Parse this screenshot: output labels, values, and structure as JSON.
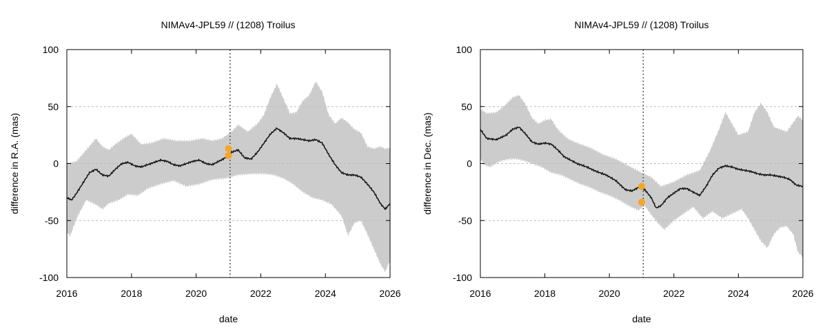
{
  "colors": {
    "band": "#cccccc",
    "line": "#1a1a1a",
    "points": "#f5a623",
    "grid": "#bbbbbb",
    "epoch_line": "#555555"
  },
  "chart_data": [
    {
      "type": "area",
      "title": "NIMAv4-JPL59 // (1208) Troilus",
      "xlabel": "date",
      "ylabel": "difference in R.A. (mas)",
      "xlim": [
        2016,
        2026
      ],
      "ylim": [
        -100,
        100
      ],
      "xticks": [
        "2016",
        "2018",
        "2020",
        "2022",
        "2024",
        "2026"
      ],
      "yticks": [
        "-100",
        "-50",
        "0",
        "50",
        "100"
      ],
      "grid": "horizontal dashed",
      "epoch_marker_x": 2021.05,
      "series": [
        {
          "role": "mean",
          "x": [
            2016.0,
            2016.15,
            2016.3,
            2016.5,
            2016.7,
            2016.9,
            2017.1,
            2017.3,
            2017.5,
            2017.7,
            2017.9,
            2018.1,
            2018.3,
            2018.5,
            2018.7,
            2018.9,
            2019.1,
            2019.3,
            2019.5,
            2019.7,
            2019.9,
            2020.1,
            2020.3,
            2020.5,
            2020.7,
            2020.9,
            2021.1,
            2021.3,
            2021.5,
            2021.7,
            2021.9,
            2022.1,
            2022.3,
            2022.5,
            2022.7,
            2022.9,
            2023.1,
            2023.3,
            2023.5,
            2023.7,
            2023.9,
            2024.1,
            2024.3,
            2024.5,
            2024.7,
            2024.9,
            2025.1,
            2025.3,
            2025.5,
            2025.7,
            2025.85,
            2026.0
          ],
          "y": [
            -30,
            -32,
            -26,
            -17,
            -8,
            -5,
            -10,
            -11,
            -5,
            0,
            1,
            -2,
            -3,
            -1,
            1,
            3,
            2,
            -1,
            -2,
            0,
            2,
            3,
            0,
            -1,
            2,
            5,
            10,
            12,
            5,
            4,
            10,
            18,
            26,
            31,
            27,
            22,
            22,
            21,
            20,
            21,
            18,
            8,
            -1,
            -8,
            -10,
            -10,
            -12,
            -18,
            -25,
            -35,
            -40,
            -35
          ]
        },
        {
          "role": "upper",
          "x": [
            2016.0,
            2016.3,
            2016.6,
            2016.9,
            2017.1,
            2017.3,
            2017.5,
            2017.8,
            2018.0,
            2018.3,
            2018.6,
            2019.0,
            2019.4,
            2019.8,
            2020.2,
            2020.5,
            2020.8,
            2021.1,
            2021.3,
            2021.6,
            2021.9,
            2022.1,
            2022.3,
            2022.5,
            2022.7,
            2022.9,
            2023.1,
            2023.3,
            2023.5,
            2023.7,
            2023.9,
            2024.1,
            2024.3,
            2024.5,
            2024.7,
            2024.9,
            2025.1,
            2025.3,
            2025.5,
            2025.7,
            2025.85,
            2026.0
          ],
          "y": [
            0,
            2,
            12,
            22,
            15,
            12,
            17,
            23,
            26,
            17,
            18,
            22,
            20,
            20,
            22,
            20,
            22,
            28,
            34,
            28,
            35,
            43,
            58,
            70,
            57,
            44,
            45,
            55,
            60,
            72,
            63,
            43,
            35,
            40,
            36,
            30,
            27,
            15,
            13,
            15,
            13,
            14
          ]
        },
        {
          "role": "lower",
          "x": [
            2016.0,
            2016.1,
            2016.3,
            2016.6,
            2016.9,
            2017.1,
            2017.3,
            2017.6,
            2017.9,
            2018.2,
            2018.5,
            2018.9,
            2019.3,
            2019.7,
            2020.1,
            2020.5,
            2020.9,
            2021.3,
            2021.7,
            2022.1,
            2022.4,
            2022.7,
            2023.0,
            2023.3,
            2023.6,
            2023.9,
            2024.2,
            2024.5,
            2024.7,
            2024.9,
            2025.1,
            2025.3,
            2025.5,
            2025.7,
            2025.85,
            2026.0
          ],
          "y": [
            -60,
            -64,
            -48,
            -32,
            -36,
            -40,
            -35,
            -32,
            -27,
            -28,
            -22,
            -18,
            -15,
            -20,
            -18,
            -14,
            -13,
            -10,
            -9,
            -9,
            -10,
            -13,
            -18,
            -25,
            -30,
            -32,
            -36,
            -46,
            -63,
            -52,
            -50,
            -62,
            -75,
            -88,
            -95,
            -85
          ]
        }
      ],
      "points": [
        {
          "x": 2021.0,
          "y": 13
        },
        {
          "x": 2021.0,
          "y": 7
        }
      ]
    },
    {
      "type": "area",
      "title": "NIMAv4-JPL59 // (1208) Troilus",
      "xlabel": "date",
      "ylabel": "difference in Dec. (mas)",
      "xlim": [
        2016,
        2026
      ],
      "ylim": [
        -100,
        100
      ],
      "xticks": [
        "2016",
        "2018",
        "2020",
        "2022",
        "2024",
        "2026"
      ],
      "yticks": [
        "-100",
        "-50",
        "0",
        "50",
        "100"
      ],
      "grid": "horizontal dashed",
      "epoch_marker_x": 2021.05,
      "series": [
        {
          "role": "mean",
          "x": [
            2016.0,
            2016.2,
            2016.5,
            2016.8,
            2017.0,
            2017.2,
            2017.4,
            2017.6,
            2017.8,
            2018.0,
            2018.2,
            2018.4,
            2018.6,
            2018.8,
            2019.0,
            2019.3,
            2019.6,
            2019.9,
            2020.2,
            2020.5,
            2020.7,
            2020.9,
            2021.1,
            2021.3,
            2021.45,
            2021.6,
            2021.8,
            2022.0,
            2022.2,
            2022.4,
            2022.6,
            2022.8,
            2023.0,
            2023.2,
            2023.4,
            2023.6,
            2023.8,
            2024.0,
            2024.2,
            2024.4,
            2024.6,
            2024.8,
            2025.0,
            2025.2,
            2025.4,
            2025.6,
            2025.8,
            2026.0
          ],
          "y": [
            30,
            22,
            21,
            25,
            30,
            32,
            26,
            19,
            17,
            18,
            17,
            12,
            6,
            3,
            0,
            -3,
            -7,
            -10,
            -15,
            -23,
            -24,
            -21,
            -23,
            -30,
            -39,
            -37,
            -30,
            -26,
            -22,
            -22,
            -25,
            -28,
            -20,
            -10,
            -4,
            -2,
            -3,
            -5,
            -6,
            -7,
            -9,
            -10,
            -10,
            -11,
            -12,
            -14,
            -19,
            -20
          ]
        },
        {
          "role": "upper",
          "x": [
            2016.0,
            2016.2,
            2016.5,
            2016.8,
            2017.0,
            2017.2,
            2017.4,
            2017.6,
            2017.8,
            2018.0,
            2018.2,
            2018.4,
            2018.7,
            2019.0,
            2019.4,
            2019.8,
            2020.2,
            2020.6,
            2021.0,
            2021.3,
            2021.6,
            2022.0,
            2022.4,
            2022.8,
            2023.1,
            2023.4,
            2023.6,
            2023.8,
            2024.0,
            2024.3,
            2024.5,
            2024.7,
            2024.9,
            2025.1,
            2025.3,
            2025.5,
            2025.7,
            2025.85,
            2026.0
          ],
          "y": [
            48,
            44,
            45,
            52,
            58,
            60,
            52,
            40,
            35,
            38,
            39,
            30,
            22,
            18,
            14,
            8,
            4,
            -2,
            -8,
            -12,
            -20,
            -16,
            -10,
            -6,
            10,
            30,
            45,
            35,
            25,
            28,
            45,
            53,
            45,
            32,
            30,
            28,
            36,
            42,
            38
          ]
        },
        {
          "role": "lower",
          "x": [
            2016.0,
            2016.1,
            2016.3,
            2016.6,
            2016.9,
            2017.1,
            2017.3,
            2017.6,
            2017.9,
            2018.2,
            2018.5,
            2018.8,
            2019.1,
            2019.4,
            2019.7,
            2020.0,
            2020.3,
            2020.6,
            2020.9,
            2021.1,
            2021.3,
            2021.5,
            2021.7,
            2022.0,
            2022.3,
            2022.6,
            2022.9,
            2023.2,
            2023.5,
            2023.8,
            2024.1,
            2024.3,
            2024.5,
            2024.7,
            2024.9,
            2025.1,
            2025.3,
            2025.5,
            2025.7,
            2025.85,
            2026.0
          ],
          "y": [
            5,
            -1,
            -3,
            2,
            4,
            4,
            3,
            0,
            -3,
            -8,
            -10,
            -14,
            -18,
            -21,
            -25,
            -28,
            -32,
            -37,
            -41,
            -37,
            -45,
            -52,
            -58,
            -50,
            -44,
            -38,
            -48,
            -42,
            -48,
            -44,
            -40,
            -48,
            -58,
            -68,
            -74,
            -62,
            -56,
            -55,
            -62,
            -78,
            -82
          ]
        }
      ],
      "points": [
        {
          "x": 2021.0,
          "y": -20
        },
        {
          "x": 2021.0,
          "y": -34
        }
      ]
    }
  ]
}
